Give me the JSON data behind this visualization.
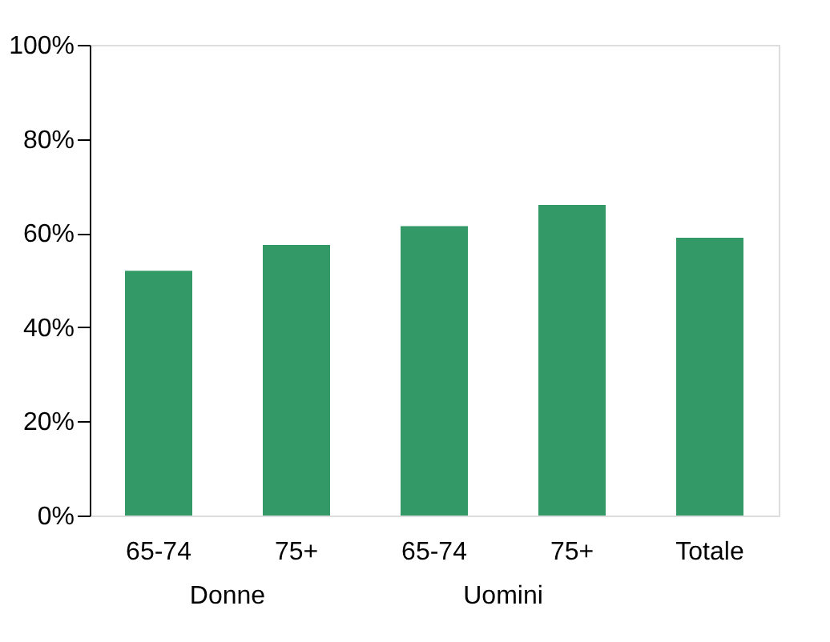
{
  "chart_data": {
    "type": "bar",
    "categories": [
      "65-74",
      "75+",
      "65-74",
      "75+",
      "Totale"
    ],
    "values": [
      52,
      57.5,
      61.5,
      66,
      59
    ],
    "color": "#339966",
    "ylim": [
      0,
      100
    ],
    "yticks": [
      {
        "value": 0,
        "label": "0%"
      },
      {
        "value": 20,
        "label": "20%"
      },
      {
        "value": 40,
        "label": "40%"
      },
      {
        "value": 60,
        "label": "60%"
      },
      {
        "value": 80,
        "label": "80%"
      },
      {
        "value": 100,
        "label": "100%"
      }
    ],
    "grid": false,
    "annotations": [
      "Donne",
      "Uomini"
    ]
  }
}
